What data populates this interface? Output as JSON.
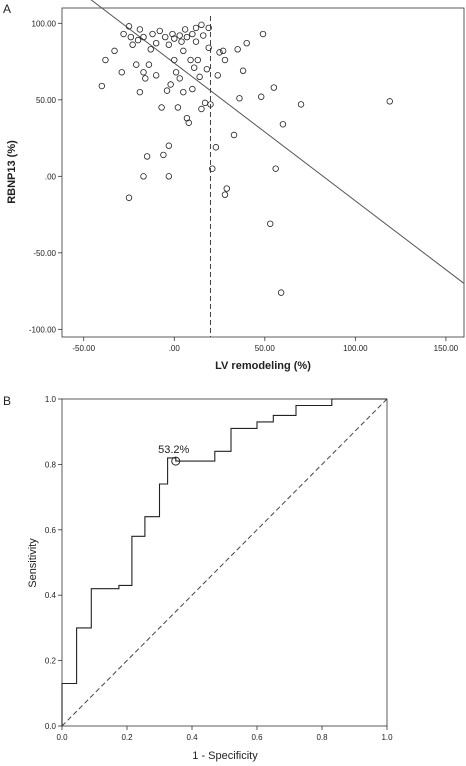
{
  "chart_data": [
    {
      "type": "scatter",
      "panel_label": "A",
      "xlabel": "LV remodeling (%)",
      "ylabel": "RBNP13 (%)",
      "xlim": [
        -62,
        160
      ],
      "ylim": [
        -105,
        110
      ],
      "x_ticks": [
        {
          "value": -50,
          "label": "-50.00"
        },
        {
          "value": 0,
          "label": ".00"
        },
        {
          "value": 50,
          "label": "50.00"
        },
        {
          "value": 100,
          "label": "100.00"
        },
        {
          "value": 150,
          "label": "150.00"
        }
      ],
      "y_ticks": [
        {
          "value": 100,
          "label": "100.00"
        },
        {
          "value": 50,
          "label": "50.00"
        },
        {
          "value": 0,
          "label": ".00"
        },
        {
          "value": -50,
          "label": "-50.00"
        },
        {
          "value": -100,
          "label": "-100.00"
        }
      ],
      "grid": false,
      "cutoff_x": 20,
      "fit_line": {
        "intercept": 74,
        "slope": -0.9
      },
      "points": [
        {
          "x": -40,
          "y": 59
        },
        {
          "x": -38,
          "y": 76
        },
        {
          "x": -33,
          "y": 82
        },
        {
          "x": -29,
          "y": 68
        },
        {
          "x": -28,
          "y": 93
        },
        {
          "x": -25,
          "y": 98
        },
        {
          "x": -24,
          "y": 91
        },
        {
          "x": -23,
          "y": 86
        },
        {
          "x": -21,
          "y": 73
        },
        {
          "x": -20,
          "y": 89
        },
        {
          "x": -19,
          "y": 96
        },
        {
          "x": -19,
          "y": 55
        },
        {
          "x": -17,
          "y": 91
        },
        {
          "x": -17,
          "y": 68
        },
        {
          "x": -16,
          "y": 64
        },
        {
          "x": -15,
          "y": 13
        },
        {
          "x": -14,
          "y": 73
        },
        {
          "x": -13,
          "y": 83
        },
        {
          "x": -12,
          "y": 93
        },
        {
          "x": -10,
          "y": 87
        },
        {
          "x": -10,
          "y": 66
        },
        {
          "x": -8,
          "y": 95
        },
        {
          "x": -7,
          "y": 45
        },
        {
          "x": -5,
          "y": 91
        },
        {
          "x": -4,
          "y": 56
        },
        {
          "x": -3,
          "y": 86
        },
        {
          "x": -2,
          "y": 60
        },
        {
          "x": -1,
          "y": 93
        },
        {
          "x": 0,
          "y": 90
        },
        {
          "x": 0,
          "y": 76
        },
        {
          "x": 1,
          "y": 68
        },
        {
          "x": 2,
          "y": 45
        },
        {
          "x": 3,
          "y": 64
        },
        {
          "x": 3,
          "y": 92
        },
        {
          "x": 4,
          "y": 88
        },
        {
          "x": 5,
          "y": 82
        },
        {
          "x": 5,
          "y": 55
        },
        {
          "x": 6,
          "y": 96
        },
        {
          "x": 7,
          "y": 91
        },
        {
          "x": 7,
          "y": 38
        },
        {
          "x": 8,
          "y": 35
        },
        {
          "x": 9,
          "y": 76
        },
        {
          "x": 10,
          "y": 93
        },
        {
          "x": 10,
          "y": 57
        },
        {
          "x": 11,
          "y": 71
        },
        {
          "x": 12,
          "y": 97
        },
        {
          "x": 12,
          "y": 88
        },
        {
          "x": 13,
          "y": 76
        },
        {
          "x": 14,
          "y": 65
        },
        {
          "x": 15,
          "y": 99
        },
        {
          "x": 15,
          "y": 44
        },
        {
          "x": 16,
          "y": 92
        },
        {
          "x": 17,
          "y": 48
        },
        {
          "x": 18,
          "y": 70
        },
        {
          "x": 19,
          "y": 97
        },
        {
          "x": 19,
          "y": 84
        },
        {
          "x": 20,
          "y": 47
        },
        {
          "x": 21,
          "y": 5
        },
        {
          "x": 23,
          "y": 19
        },
        {
          "x": 24,
          "y": 66
        },
        {
          "x": 25,
          "y": 81
        },
        {
          "x": 27,
          "y": 82
        },
        {
          "x": 28,
          "y": 76
        },
        {
          "x": 28,
          "y": -12
        },
        {
          "x": 29,
          "y": -8
        },
        {
          "x": 33,
          "y": 27
        },
        {
          "x": 35,
          "y": 83
        },
        {
          "x": 36,
          "y": 51
        },
        {
          "x": 38,
          "y": 69
        },
        {
          "x": 40,
          "y": 87
        },
        {
          "x": 48,
          "y": 52
        },
        {
          "x": 49,
          "y": 93
        },
        {
          "x": 55,
          "y": 58
        },
        {
          "x": 56,
          "y": 5
        },
        {
          "x": 53,
          "y": -31
        },
        {
          "x": 59,
          "y": -76
        },
        {
          "x": 60,
          "y": 34
        },
        {
          "x": 70,
          "y": 47
        },
        {
          "x": 119,
          "y": 49
        },
        {
          "x": -25,
          "y": -14
        },
        {
          "x": -17,
          "y": 0
        },
        {
          "x": -3,
          "y": 0
        },
        {
          "x": -6,
          "y": 14
        },
        {
          "x": -3,
          "y": 20
        }
      ]
    },
    {
      "type": "line",
      "panel_label": "B",
      "xlabel": "1 - Specificity",
      "ylabel": "Sensitivity",
      "xlim": [
        0,
        1
      ],
      "ylim": [
        0,
        1
      ],
      "x_ticks": [
        {
          "value": 0,
          "label": "0.0"
        },
        {
          "value": 0.2,
          "label": "0.2"
        },
        {
          "value": 0.4,
          "label": "0.4"
        },
        {
          "value": 0.6,
          "label": "0.6"
        },
        {
          "value": 0.8,
          "label": "0.8"
        },
        {
          "value": 1,
          "label": "1.0"
        }
      ],
      "y_ticks": [
        {
          "value": 0,
          "label": "0.0"
        },
        {
          "value": 0.2,
          "label": "0.2"
        },
        {
          "value": 0.4,
          "label": "0.4"
        },
        {
          "value": 0.6,
          "label": "0.6"
        },
        {
          "value": 0.8,
          "label": "0.8"
        },
        {
          "value": 1,
          "label": "1.0"
        }
      ],
      "grid": false,
      "reference_line": [
        [
          0,
          0
        ],
        [
          1,
          1
        ]
      ],
      "cutoff_point": {
        "x": 0.35,
        "y": 0.81,
        "label": "53.2%"
      },
      "roc": [
        [
          0.0,
          0.0
        ],
        [
          0.0,
          0.13
        ],
        [
          0.045,
          0.13
        ],
        [
          0.045,
          0.3
        ],
        [
          0.09,
          0.3
        ],
        [
          0.09,
          0.42
        ],
        [
          0.175,
          0.42
        ],
        [
          0.175,
          0.43
        ],
        [
          0.215,
          0.43
        ],
        [
          0.215,
          0.58
        ],
        [
          0.255,
          0.58
        ],
        [
          0.255,
          0.64
        ],
        [
          0.3,
          0.64
        ],
        [
          0.3,
          0.74
        ],
        [
          0.325,
          0.74
        ],
        [
          0.325,
          0.82
        ],
        [
          0.35,
          0.82
        ],
        [
          0.35,
          0.81
        ],
        [
          0.47,
          0.81
        ],
        [
          0.47,
          0.84
        ],
        [
          0.52,
          0.84
        ],
        [
          0.52,
          0.91
        ],
        [
          0.6,
          0.91
        ],
        [
          0.6,
          0.93
        ],
        [
          0.65,
          0.93
        ],
        [
          0.65,
          0.95
        ],
        [
          0.72,
          0.95
        ],
        [
          0.72,
          0.98
        ],
        [
          0.83,
          0.98
        ],
        [
          0.83,
          1.0
        ],
        [
          1.0,
          1.0
        ]
      ]
    }
  ]
}
